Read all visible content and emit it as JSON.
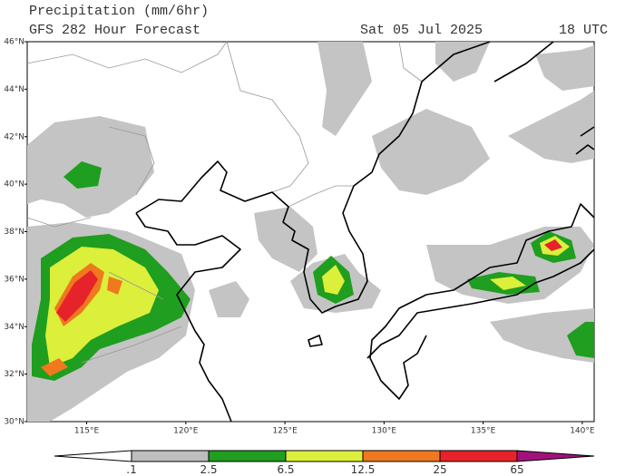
{
  "header": {
    "title": "Precipitation (mm/6hr)",
    "subtitle": "GFS 282 Hour Forecast",
    "date": "Sat 05 Jul 2025",
    "time": "18 UTC"
  },
  "map": {
    "xlim": [
      112,
      140.6
    ],
    "ylim": [
      30,
      46
    ],
    "lat_ticks": [
      {
        "value": 30,
        "label": "30°N"
      },
      {
        "value": 32,
        "label": "32°N"
      },
      {
        "value": 34,
        "label": "34°N"
      },
      {
        "value": 36,
        "label": "36°N"
      },
      {
        "value": 38,
        "label": "38°N"
      },
      {
        "value": 40,
        "label": "40°N"
      },
      {
        "value": 42,
        "label": "42°N"
      },
      {
        "value": 44,
        "label": "44°N"
      },
      {
        "value": 46,
        "label": "46°N"
      }
    ],
    "lon_ticks": [
      {
        "value": 115,
        "label": "115°E"
      },
      {
        "value": 120,
        "label": "120°E"
      },
      {
        "value": 125,
        "label": "125°E"
      },
      {
        "value": 130,
        "label": "130°E"
      },
      {
        "value": 135,
        "label": "135°E"
      },
      {
        "value": 140,
        "label": "140°E"
      }
    ]
  },
  "colorbar": {
    "levels": [
      {
        "value": 0.1,
        "label": ".1"
      },
      2.5,
      6.5,
      12.5,
      25,
      65
    ],
    "colors": [
      "#ffffff",
      "#bebebe",
      "#1f9e1f",
      "#dcef3a",
      "#f0781e",
      "#e6232a",
      "#a3127c"
    ]
  }
}
